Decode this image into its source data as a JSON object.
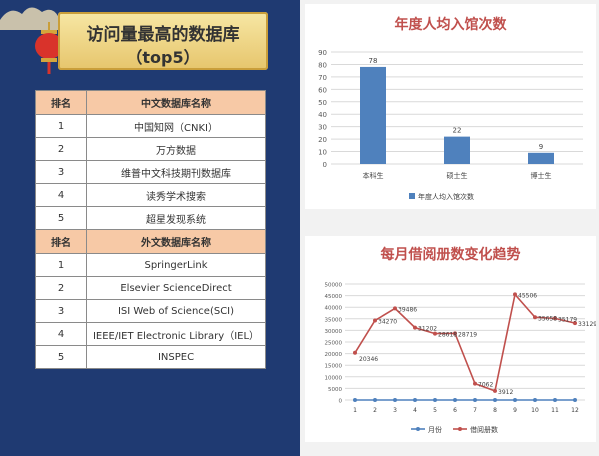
{
  "left_panel": {
    "title_line1": "访问量最高的数据库",
    "title_line2": "（top5）",
    "chinese_header": {
      "rank": "排名",
      "name": "中文数据库名称"
    },
    "chinese_rows": [
      {
        "rank": "1",
        "name": "中国知网（CNKI）"
      },
      {
        "rank": "2",
        "name": "万方数据"
      },
      {
        "rank": "3",
        "name": "维普中文科技期刊数据库"
      },
      {
        "rank": "4",
        "name": "读秀学术搜索"
      },
      {
        "rank": "5",
        "name": "超星发现系统"
      }
    ],
    "foreign_header": {
      "rank": "排名",
      "name": "外文数据库名称"
    },
    "foreign_rows": [
      {
        "rank": "1",
        "name": "SpringerLink"
      },
      {
        "rank": "2",
        "name": "Elsevier ScienceDirect"
      },
      {
        "rank": "3",
        "name": "ISI Web of Science(SCI)"
      },
      {
        "rank": "4",
        "name": "IEEE/IET Electronic Library（IEL）"
      },
      {
        "rank": "5",
        "name": "INSPEC"
      }
    ]
  },
  "chart_data": [
    {
      "type": "bar",
      "title": "年度人均入馆次数",
      "categories": [
        "本科生",
        "硕士生",
        "博士生"
      ],
      "series": [
        {
          "name": "年度人均入馆次数",
          "values": [
            78,
            22,
            9
          ],
          "color": "#4f81bd"
        }
      ],
      "ylim": [
        0,
        90
      ],
      "yticks": [
        "0",
        "10",
        "20",
        "30",
        "40",
        "50",
        "60",
        "70",
        "80",
        "90"
      ],
      "data_labels": [
        "78",
        "22",
        "9"
      ],
      "grid": true,
      "legend": "bottom"
    },
    {
      "type": "line",
      "title": "每月借阅册数变化趋势",
      "categories": [
        "1",
        "2",
        "3",
        "4",
        "5",
        "6",
        "7",
        "8",
        "9",
        "10",
        "11",
        "12"
      ],
      "series": [
        {
          "name": "月份",
          "values": [
            0,
            0,
            0,
            0,
            0,
            0,
            0,
            0,
            0,
            0,
            0,
            0
          ],
          "color": "#4f81bd"
        },
        {
          "name": "借阅册数",
          "values": [
            20346,
            34270,
            39486,
            31202,
            28618,
            28719,
            7062,
            3912,
            45506,
            35658,
            35179,
            33129
          ],
          "color": "#c0504d"
        }
      ],
      "data_labels": [
        "20346",
        "34270",
        "39486",
        "31202",
        "28618",
        "28719",
        "7062",
        "3912",
        "45506",
        "35658",
        "35179",
        "33129"
      ],
      "ylim": [
        0,
        50000
      ],
      "yticks": [
        "0",
        "5000",
        "10000",
        "15000",
        "20000",
        "25000",
        "30000",
        "35000",
        "40000",
        "45000",
        "50000"
      ],
      "grid": true,
      "legend": "bottom"
    }
  ]
}
